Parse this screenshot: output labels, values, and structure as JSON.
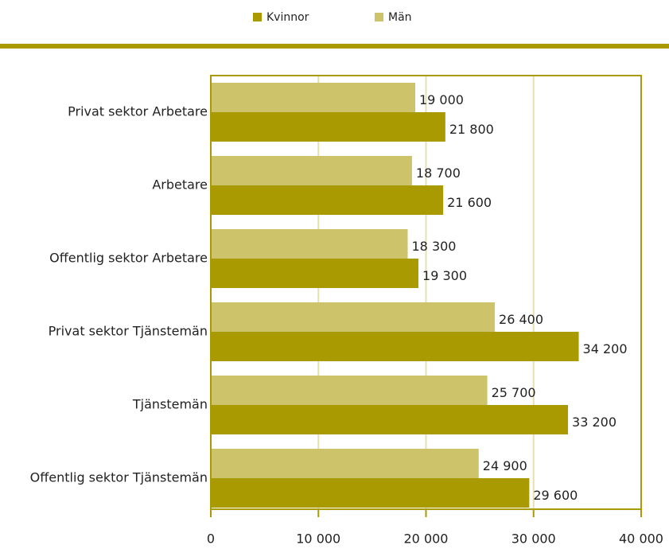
{
  "chart_data": {
    "type": "hbar",
    "categories": [
      "Privat sektor Arbetare",
      "Arbetare",
      "Offentlig sektor Arbetare",
      "Privat sektor Tjänstemän",
      "Tjänstemän",
      "Offentlig sektor Tjänstemän"
    ],
    "series": [
      {
        "name": "Kvinnor",
        "color": "#a89a00",
        "values": [
          21800,
          21600,
          19300,
          34200,
          33200,
          29600
        ],
        "value_labels": [
          "21 800",
          "21 600",
          "19 300",
          "34 200",
          "33 200",
          "29 600"
        ]
      },
      {
        "name": "Män",
        "color": "#cdc36a",
        "values": [
          19000,
          18700,
          18300,
          26400,
          25700,
          24900
        ],
        "value_labels": [
          "19 000",
          "18 700",
          "18 300",
          "26 400",
          "25 700",
          "24 900"
        ]
      }
    ],
    "xlim": [
      0,
      40000
    ],
    "xticks": [
      0,
      {
        "value": 10000,
        "label": "10 000"
      },
      {
        "value": 20000,
        "label": "20 000"
      },
      {
        "value": 30000,
        "label": "30 000"
      },
      {
        "value": 40000,
        "label": "40 000"
      }
    ],
    "grid": true,
    "legend": "top"
  }
}
